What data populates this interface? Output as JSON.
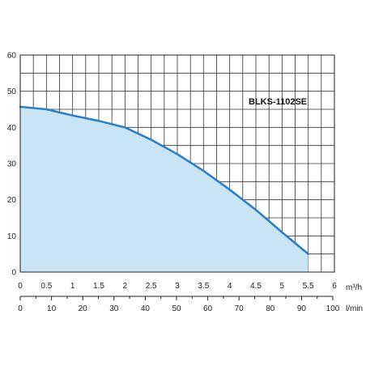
{
  "chart_data": {
    "type": "area",
    "label": "BLKS-1102SE",
    "x_unit": "m³/h",
    "x2_unit": "l/min",
    "xlim": [
      0,
      6
    ],
    "ylim": [
      0,
      60
    ],
    "x_ticks": [
      "0",
      "0.5",
      "1",
      "1.5",
      "2",
      "2.5",
      "3",
      "3.5",
      "4",
      "4.5",
      "5",
      "5.5",
      "6"
    ],
    "x2_ticks": [
      "0",
      "10",
      "20",
      "30",
      "40",
      "50",
      "60",
      "70",
      "80",
      "90",
      "100"
    ],
    "y_ticks": [
      "0",
      "10",
      "20",
      "30",
      "40",
      "50",
      "60"
    ],
    "grid": true,
    "series": [
      {
        "x": [
          0,
          0.5,
          1,
          1.5,
          2,
          2.5,
          3,
          3.5,
          4,
          4.5,
          5,
          5.5
        ],
        "y": [
          45.7,
          45,
          43.3,
          41.8,
          40,
          36.6,
          32.6,
          28,
          22.8,
          17.2,
          11,
          5
        ]
      }
    ],
    "colors": {
      "line": "#2f7fc4",
      "fill": "#c8e4f5",
      "grid": "#333333"
    }
  }
}
